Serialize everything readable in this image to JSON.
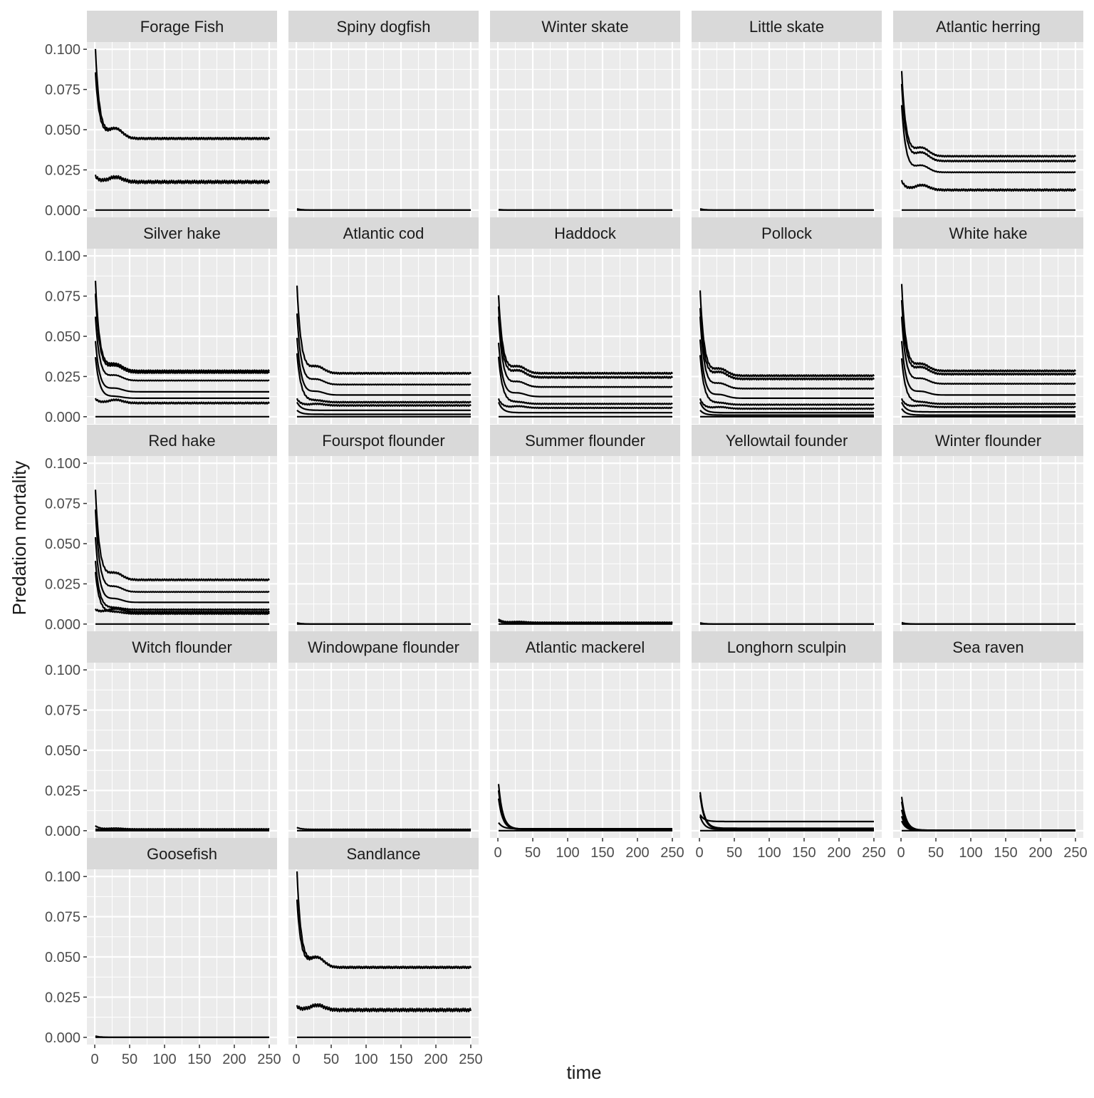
{
  "chart_data": {
    "type": "line",
    "layout": "facet-grid",
    "xlabel": "time",
    "ylabel": "Predation mortality",
    "xlim": [
      0,
      250
    ],
    "ylim": [
      0,
      0.1
    ],
    "x_ticks": [
      0,
      50,
      100,
      150,
      200,
      250
    ],
    "x_tick_labels": [
      "0",
      "50",
      "100",
      "150",
      "200",
      "250"
    ],
    "y_ticks": [
      0,
      0.025,
      0.05,
      0.075,
      0.1
    ],
    "y_tick_labels": [
      "0.000",
      "0.025",
      "0.050",
      "0.075",
      "0.100"
    ],
    "grid": true,
    "colors": {
      "panel_background": "#ebebeb",
      "strip_background": "#d9d9d9",
      "grid_line": "#ffffff",
      "series_line": "#000000",
      "axis_text": "#4d4d4d",
      "title_text": "#1a1a1a"
    },
    "panels": [
      {
        "title": "Forage Fish",
        "series": [
          {
            "start": 0.0995,
            "end": 0.0445,
            "hump": 0.006,
            "wiggle": 0.0006
          },
          {
            "start": 0.085,
            "end": 0.0445,
            "hump": 0.006,
            "wiggle": 0.0006
          },
          {
            "start": 0.021,
            "end": 0.0175,
            "hump": 0.003,
            "wiggle": 0.001
          },
          {
            "start": 0.0,
            "end": 0.0,
            "hump": 0,
            "wiggle": 0
          }
        ]
      },
      {
        "title": "Spiny dogfish",
        "series": [
          {
            "start": 0.0008,
            "end": 0.0,
            "hump": 0,
            "wiggle": 0
          },
          {
            "start": 0.0,
            "end": 0.0,
            "hump": 0,
            "wiggle": 0
          }
        ]
      },
      {
        "title": "Winter skate",
        "series": [
          {
            "start": 0.0003,
            "end": 0.0,
            "hump": 0,
            "wiggle": 0
          },
          {
            "start": 0.0,
            "end": 0.0,
            "hump": 0,
            "wiggle": 0
          }
        ]
      },
      {
        "title": "Little skate",
        "series": [
          {
            "start": 0.0008,
            "end": 0.0,
            "hump": 0,
            "wiggle": 0
          },
          {
            "start": 0.0,
            "end": 0.0,
            "hump": 0,
            "wiggle": 0
          }
        ]
      },
      {
        "title": "Atlantic herring",
        "series": [
          {
            "start": 0.086,
            "end": 0.0335,
            "hump": 0.005,
            "wiggle": 0.0004
          },
          {
            "start": 0.078,
            "end": 0.0305,
            "hump": 0.005,
            "wiggle": 0.0004
          },
          {
            "start": 0.065,
            "end": 0.0235,
            "hump": 0.004,
            "wiggle": 0.0002
          },
          {
            "start": 0.018,
            "end": 0.0125,
            "hump": 0.003,
            "wiggle": 0.0006
          },
          {
            "start": 0.0,
            "end": 0.0,
            "hump": 0,
            "wiggle": 0
          }
        ]
      },
      {
        "title": "Silver hake",
        "series": [
          {
            "start": 0.084,
            "end": 0.0285,
            "hump": 0.004,
            "wiggle": 0.0005
          },
          {
            "start": 0.076,
            "end": 0.0275,
            "hump": 0.004,
            "wiggle": 0.0005
          },
          {
            "start": 0.062,
            "end": 0.0225,
            "hump": 0.003,
            "wiggle": 0.0002
          },
          {
            "start": 0.047,
            "end": 0.0155,
            "hump": 0.002,
            "wiggle": 0
          },
          {
            "start": 0.037,
            "end": 0.0115,
            "hump": 0.001,
            "wiggle": 0
          },
          {
            "start": 0.011,
            "end": 0.0085,
            "hump": 0.002,
            "wiggle": 0.0005
          },
          {
            "start": 0.0,
            "end": 0.0,
            "hump": 0,
            "wiggle": 0
          }
        ]
      },
      {
        "title": "Atlantic cod",
        "series": [
          {
            "start": 0.081,
            "end": 0.027,
            "hump": 0.004,
            "wiggle": 0.0005
          },
          {
            "start": 0.064,
            "end": 0.02,
            "hump": 0.003,
            "wiggle": 0.0002
          },
          {
            "start": 0.049,
            "end": 0.0135,
            "hump": 0.002,
            "wiggle": 0
          },
          {
            "start": 0.039,
            "end": 0.009,
            "hump": 0.001,
            "wiggle": 0.0004
          },
          {
            "start": 0.011,
            "end": 0.007,
            "hump": 0.001,
            "wiggle": 0.0004
          },
          {
            "start": 0.009,
            "end": 0.004,
            "hump": 0,
            "wiggle": 0
          },
          {
            "start": 0.004,
            "end": 0.0015,
            "hump": 0,
            "wiggle": 0
          },
          {
            "start": 0.0,
            "end": 0.0,
            "hump": 0,
            "wiggle": 0
          }
        ]
      },
      {
        "title": "Haddock",
        "series": [
          {
            "start": 0.075,
            "end": 0.027,
            "hump": 0.004,
            "wiggle": 0.0005
          },
          {
            "start": 0.068,
            "end": 0.0245,
            "hump": 0.004,
            "wiggle": 0.0005
          },
          {
            "start": 0.062,
            "end": 0.0185,
            "hump": 0.003,
            "wiggle": 0.0002
          },
          {
            "start": 0.046,
            "end": 0.0125,
            "hump": 0.002,
            "wiggle": 0
          },
          {
            "start": 0.037,
            "end": 0.008,
            "hump": 0.001,
            "wiggle": 0.0003
          },
          {
            "start": 0.011,
            "end": 0.0055,
            "hump": 0.001,
            "wiggle": 0.0003
          },
          {
            "start": 0.009,
            "end": 0.0025,
            "hump": 0,
            "wiggle": 0
          },
          {
            "start": 0.0,
            "end": 0.0,
            "hump": 0,
            "wiggle": 0
          }
        ]
      },
      {
        "title": "Pollock",
        "series": [
          {
            "start": 0.078,
            "end": 0.0255,
            "hump": 0.004,
            "wiggle": 0.0005
          },
          {
            "start": 0.067,
            "end": 0.0235,
            "hump": 0.004,
            "wiggle": 0.0005
          },
          {
            "start": 0.062,
            "end": 0.0175,
            "hump": 0.003,
            "wiggle": 0.0002
          },
          {
            "start": 0.048,
            "end": 0.0115,
            "hump": 0.002,
            "wiggle": 0
          },
          {
            "start": 0.038,
            "end": 0.0075,
            "hump": 0.001,
            "wiggle": 0.0003
          },
          {
            "start": 0.011,
            "end": 0.005,
            "hump": 0.001,
            "wiggle": 0.0003
          },
          {
            "start": 0.009,
            "end": 0.0025,
            "hump": 0,
            "wiggle": 0
          },
          {
            "start": 0.004,
            "end": 0.001,
            "hump": 0,
            "wiggle": 0
          },
          {
            "start": 0.0,
            "end": 0.0,
            "hump": 0,
            "wiggle": 0
          }
        ]
      },
      {
        "title": "White hake",
        "series": [
          {
            "start": 0.082,
            "end": 0.0285,
            "hump": 0.004,
            "wiggle": 0.0005
          },
          {
            "start": 0.072,
            "end": 0.0265,
            "hump": 0.004,
            "wiggle": 0.0005
          },
          {
            "start": 0.062,
            "end": 0.0205,
            "hump": 0.003,
            "wiggle": 0.0002
          },
          {
            "start": 0.047,
            "end": 0.0135,
            "hump": 0.002,
            "wiggle": 0
          },
          {
            "start": 0.036,
            "end": 0.008,
            "hump": 0.001,
            "wiggle": 0.0003
          },
          {
            "start": 0.011,
            "end": 0.006,
            "hump": 0.001,
            "wiggle": 0.0003
          },
          {
            "start": 0.009,
            "end": 0.003,
            "hump": 0,
            "wiggle": 0
          },
          {
            "start": 0.005,
            "end": 0.001,
            "hump": 0,
            "wiggle": 0
          },
          {
            "start": 0.0,
            "end": 0.0,
            "hump": 0,
            "wiggle": 0
          }
        ]
      },
      {
        "title": "Red hake",
        "series": [
          {
            "start": 0.083,
            "end": 0.0275,
            "hump": 0.004,
            "wiggle": 0.0005
          },
          {
            "start": 0.071,
            "end": 0.02,
            "hump": 0.003,
            "wiggle": 0.0002
          },
          {
            "start": 0.054,
            "end": 0.0135,
            "hump": 0.002,
            "wiggle": 0
          },
          {
            "start": 0.039,
            "end": 0.009,
            "hump": 0.001,
            "wiggle": 0.0003
          },
          {
            "start": 0.032,
            "end": 0.0065,
            "hump": 0.001,
            "wiggle": 0.0004
          },
          {
            "start": 0.009,
            "end": 0.0075,
            "hump": 0.002,
            "wiggle": 0.0005
          },
          {
            "start": 0.0,
            "end": 0.0,
            "hump": 0,
            "wiggle": 0
          }
        ]
      },
      {
        "title": "Fourspot flounder",
        "series": [
          {
            "start": 0.0008,
            "end": 0.0,
            "hump": 0,
            "wiggle": 0
          },
          {
            "start": 0.0,
            "end": 0.0,
            "hump": 0,
            "wiggle": 0
          }
        ]
      },
      {
        "title": "Summer flounder",
        "series": [
          {
            "start": 0.003,
            "end": 0.001,
            "hump": 0.0005,
            "wiggle": 0.0002
          },
          {
            "start": 0.002,
            "end": 0.0005,
            "hump": 0,
            "wiggle": 0.0002
          },
          {
            "start": 0.0,
            "end": 0.0,
            "hump": 0,
            "wiggle": 0
          }
        ]
      },
      {
        "title": "Yellowtail founder",
        "series": [
          {
            "start": 0.0008,
            "end": 0.0,
            "hump": 0,
            "wiggle": 0
          },
          {
            "start": 0.0,
            "end": 0.0,
            "hump": 0,
            "wiggle": 0
          }
        ]
      },
      {
        "title": "Winter flounder",
        "series": [
          {
            "start": 0.0009,
            "end": 0.0,
            "hump": 0,
            "wiggle": 0
          },
          {
            "start": 0.0,
            "end": 0.0,
            "hump": 0,
            "wiggle": 0
          }
        ]
      },
      {
        "title": "Witch flounder",
        "series": [
          {
            "start": 0.003,
            "end": 0.001,
            "hump": 0.0005,
            "wiggle": 0.0002
          },
          {
            "start": 0.001,
            "end": 0.0005,
            "hump": 0,
            "wiggle": 0
          },
          {
            "start": 0.0,
            "end": 0.0,
            "hump": 0,
            "wiggle": 0
          }
        ]
      },
      {
        "title": "Windowpane flounder",
        "series": [
          {
            "start": 0.002,
            "end": 0.0008,
            "hump": 0,
            "wiggle": 0.0001
          },
          {
            "start": 0.0,
            "end": 0.0,
            "hump": 0,
            "wiggle": 0
          }
        ]
      },
      {
        "title": "Atlantic mackerel",
        "series": [
          {
            "start": 0.029,
            "end": 0.001,
            "hump": 0,
            "wiggle": 0
          },
          {
            "start": 0.025,
            "end": 0.001,
            "hump": 0,
            "wiggle": 0
          },
          {
            "start": 0.02,
            "end": 0.0008,
            "hump": 0,
            "wiggle": 0
          },
          {
            "start": 0.005,
            "end": 0.0012,
            "hump": 0,
            "wiggle": 0
          },
          {
            "start": 0.0,
            "end": 0.0,
            "hump": 0,
            "wiggle": 0
          }
        ]
      },
      {
        "title": "Longhorn sculpin",
        "series": [
          {
            "start": 0.024,
            "end": 0.0015,
            "hump": 0,
            "wiggle": 0
          },
          {
            "start": 0.022,
            "end": 0.001,
            "hump": 0,
            "wiggle": 0
          },
          {
            "start": 0.01,
            "end": 0.0057,
            "hump": 0,
            "wiggle": 0
          },
          {
            "start": 0.009,
            "end": 0.0008,
            "hump": 0,
            "wiggle": 0
          },
          {
            "start": 0.0,
            "end": 0.0,
            "hump": 0,
            "wiggle": 0
          }
        ]
      },
      {
        "title": "Sea raven",
        "series": [
          {
            "start": 0.021,
            "end": 0.0003,
            "hump": 0,
            "wiggle": 0
          },
          {
            "start": 0.018,
            "end": 0.0002,
            "hump": 0,
            "wiggle": 0
          },
          {
            "start": 0.013,
            "end": 0.0002,
            "hump": 0,
            "wiggle": 0
          },
          {
            "start": 0.009,
            "end": 0.0001,
            "hump": 0,
            "wiggle": 0
          },
          {
            "start": 0.006,
            "end": 0.0001,
            "hump": 0,
            "wiggle": 0
          },
          {
            "start": 0.0,
            "end": 0.0,
            "hump": 0,
            "wiggle": 0
          }
        ]
      },
      {
        "title": "Goosefish",
        "series": [
          {
            "start": 0.0008,
            "end": 0.0,
            "hump": 0,
            "wiggle": 0
          },
          {
            "start": 0.0,
            "end": 0.0,
            "hump": 0,
            "wiggle": 0
          }
        ]
      },
      {
        "title": "Sandlance",
        "series": [
          {
            "start": 0.1025,
            "end": 0.0435,
            "hump": 0.006,
            "wiggle": 0.0006
          },
          {
            "start": 0.085,
            "end": 0.0435,
            "hump": 0.006,
            "wiggle": 0.0006
          },
          {
            "start": 0.019,
            "end": 0.017,
            "hump": 0.003,
            "wiggle": 0.001
          },
          {
            "start": 0.0,
            "end": 0.0,
            "hump": 0,
            "wiggle": 0
          }
        ]
      }
    ]
  }
}
